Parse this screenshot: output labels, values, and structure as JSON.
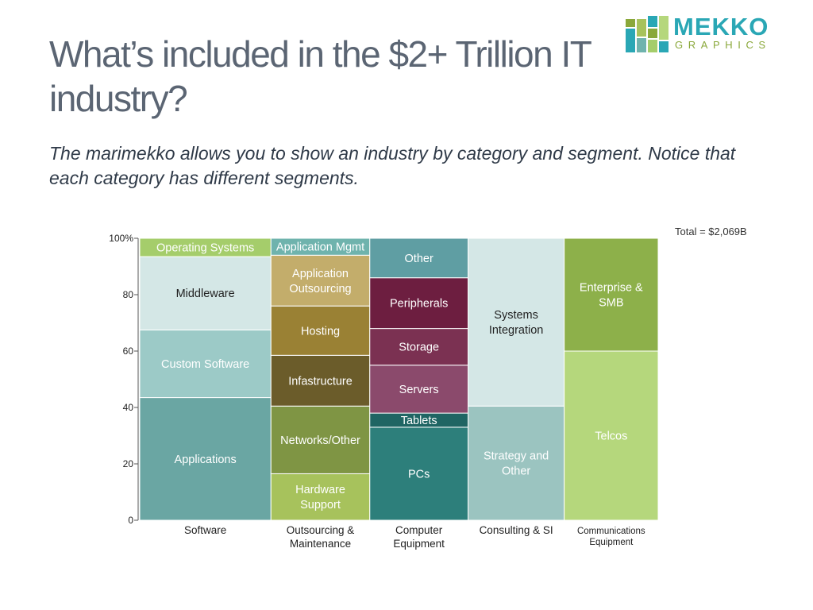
{
  "header": {
    "title": "What’s included in the $2+ Trillion IT industry?",
    "subtitle": "The marimekko allows you to show an industry by category and segment. Notice that each category has different segments."
  },
  "brand": {
    "name": "MEKKO",
    "tagline": "GRAPHICS",
    "colors": {
      "teal": "#2aa7b5",
      "green": "#8aa83a"
    }
  },
  "chart_data": {
    "type": "marimekko",
    "total_label": "Total = $2,069B",
    "y_axis": {
      "range": [
        0,
        100
      ],
      "ticks": [
        "0",
        "20",
        "40",
        "60",
        "80",
        "100%"
      ]
    },
    "categories": [
      {
        "name": "Software",
        "label_lines": [
          "Software"
        ],
        "share": 24.3,
        "segments": [
          {
            "name": "Applications",
            "label_lines": [
              "Applications"
            ],
            "value": 43.5,
            "color": "#6aa6a3",
            "text_color": "#ffffff"
          },
          {
            "name": "Custom Software",
            "label_lines": [
              "Custom Software"
            ],
            "value": 24,
            "color": "#9ccac7",
            "text_color": "#ffffff"
          },
          {
            "name": "Middleware",
            "label_lines": [
              "Middleware"
            ],
            "value": 26,
            "color": "#d4e7e6",
            "text_color": "#222222"
          },
          {
            "name": "Operating Systems",
            "label_lines": [
              "Operating Systems"
            ],
            "value": 6.5,
            "color": "#a5cd6b",
            "text_color": "#ffffff"
          }
        ]
      },
      {
        "name": "Outsourcing & Maintenance",
        "label_lines": [
          "Outsourcing &",
          "Maintenance"
        ],
        "share": 18.3,
        "segments": [
          {
            "name": "Hardware Support",
            "label_lines": [
              "Hardware",
              "Support"
            ],
            "value": 16.5,
            "color": "#a7c25c",
            "text_color": "#ffffff"
          },
          {
            "name": "Networks/Other",
            "label_lines": [
              "Networks/Other"
            ],
            "value": 24,
            "color": "#7f9544",
            "text_color": "#ffffff"
          },
          {
            "name": "Infastructure",
            "label_lines": [
              "Infastructure"
            ],
            "value": 18,
            "color": "#6b5c2a",
            "text_color": "#ffffff"
          },
          {
            "name": "Hosting",
            "label_lines": [
              "Hosting"
            ],
            "value": 17.5,
            "color": "#9a8134",
            "text_color": "#ffffff"
          },
          {
            "name": "Application Outsourcing",
            "label_lines": [
              "Application",
              "Outsourcing"
            ],
            "value": 18,
            "color": "#c3ad6b",
            "text_color": "#ffffff"
          },
          {
            "name": "Application Mgmt",
            "label_lines": [
              "Application Mgmt"
            ],
            "value": 6,
            "color": "#6fb3ad",
            "text_color": "#ffffff"
          }
        ]
      },
      {
        "name": "Computer Equipment",
        "label_lines": [
          "Computer",
          "Equipment"
        ],
        "share": 18.2,
        "segments": [
          {
            "name": "PCs",
            "label_lines": [
              "PCs"
            ],
            "value": 33,
            "color": "#2d7f7b",
            "text_color": "#ffffff"
          },
          {
            "name": "Tablets",
            "label_lines": [
              "Tablets"
            ],
            "value": 5,
            "color": "#1f6563",
            "text_color": "#ffffff"
          },
          {
            "name": "Servers",
            "label_lines": [
              "Servers"
            ],
            "value": 17,
            "color": "#8b4a6c",
            "text_color": "#ffffff"
          },
          {
            "name": "Storage",
            "label_lines": [
              "Storage"
            ],
            "value": 13,
            "color": "#7b3152",
            "text_color": "#ffffff"
          },
          {
            "name": "Peripherals",
            "label_lines": [
              "Peripherals"
            ],
            "value": 18,
            "color": "#6d1e40",
            "text_color": "#ffffff"
          },
          {
            "name": "Other",
            "label_lines": [
              "Other"
            ],
            "value": 14,
            "color": "#5f9ea3",
            "text_color": "#ffffff"
          }
        ]
      },
      {
        "name": "Consulting & SI",
        "label_lines": [
          "Consulting & SI"
        ],
        "share": 17.8,
        "segments": [
          {
            "name": "Strategy and Other",
            "label_lines": [
              "Strategy and",
              "Other"
            ],
            "value": 40.5,
            "color": "#9bc4c0",
            "text_color": "#ffffff"
          },
          {
            "name": "Systems Integration",
            "label_lines": [
              "Systems",
              "Integration"
            ],
            "value": 59.5,
            "color": "#d4e7e6",
            "text_color": "#222222"
          }
        ]
      },
      {
        "name": "Communications Equipment",
        "label_lines": [
          "Communications",
          "Equipment"
        ],
        "share": 17.4,
        "segments": [
          {
            "name": "Telcos",
            "label_lines": [
              "Telcos"
            ],
            "value": 60,
            "color": "#b5d77c",
            "text_color": "#ffffff"
          },
          {
            "name": "Enterprise & SMB",
            "label_lines": [
              "Enterprise &",
              "SMB"
            ],
            "value": 40,
            "color": "#8db04a",
            "text_color": "#ffffff"
          }
        ]
      }
    ]
  }
}
